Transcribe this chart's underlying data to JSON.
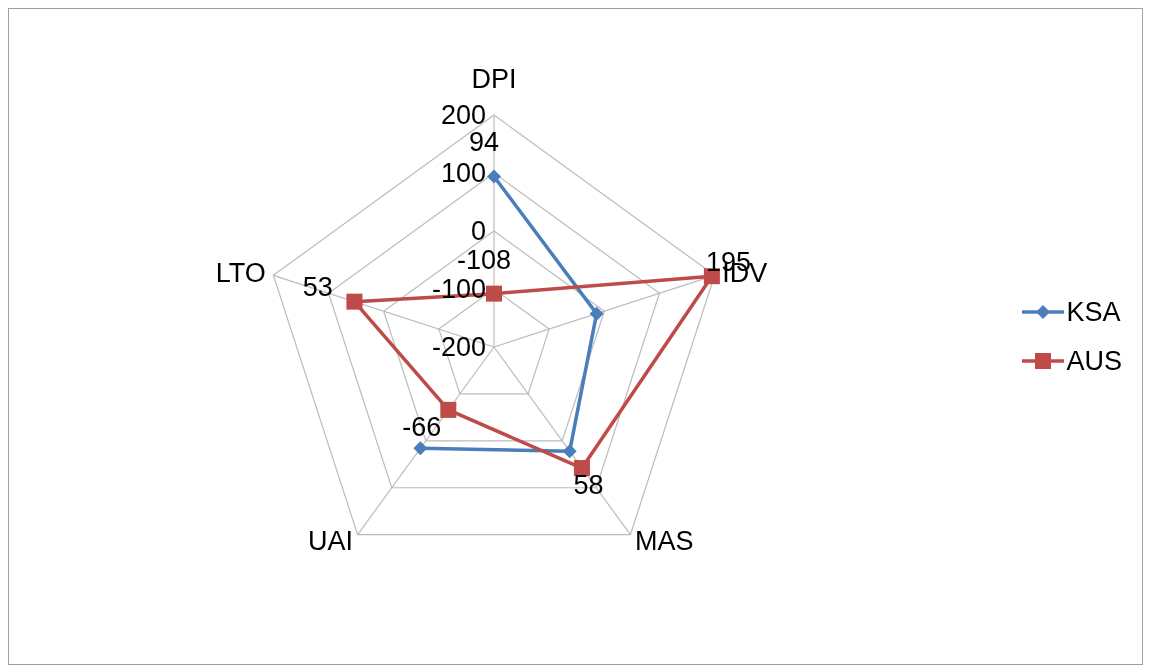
{
  "chart_data": {
    "type": "radar",
    "categories": [
      "DPI",
      "IDV",
      "MAS",
      "UAI",
      "LTO"
    ],
    "ylim": [
      -200,
      200
    ],
    "yticks": [
      -200,
      -100,
      0,
      100,
      200
    ],
    "grid": true,
    "legend": "right",
    "line_style": "solid",
    "series": [
      {
        "name": "KSA",
        "color": "#4a7ebb",
        "marker": "diamond",
        "values": [
          94,
          -14,
          22,
          16,
          null
        ],
        "value_labels": [
          "94",
          null,
          null,
          null,
          null
        ]
      },
      {
        "name": "AUS",
        "color": "#be4b48",
        "marker": "square",
        "values": [
          -108,
          195,
          58,
          -66,
          53
        ],
        "value_labels": [
          "-108",
          "195",
          "58",
          "-66",
          "53"
        ]
      }
    ]
  }
}
